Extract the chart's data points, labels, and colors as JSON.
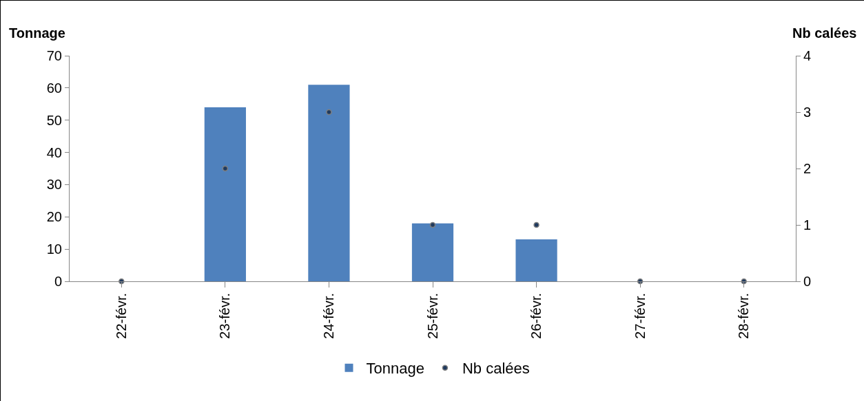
{
  "chart_data": {
    "type": "bar",
    "ylabel": "Tonnage",
    "y2label": "Nb calées",
    "categories": [
      "22-févr.",
      "23-févr.",
      "24-févr.",
      "25-févr.",
      "26-févr.",
      "27-févr.",
      "28-févr."
    ],
    "series": [
      {
        "name": "Tonnage",
        "color": "#4f81bd",
        "values": [
          0,
          54,
          61,
          18,
          13,
          0,
          0
        ]
      },
      {
        "name": "Nb calées",
        "type": "scatter",
        "axis": "y2",
        "color": "#1f3a5f",
        "marker": "circle",
        "values": [
          0,
          2,
          3,
          1,
          1,
          0,
          0
        ]
      }
    ],
    "ylim": [
      0,
      70
    ],
    "yticks": [
      0,
      10,
      20,
      30,
      40,
      50,
      60,
      70
    ],
    "y2lim": [
      0,
      4
    ],
    "y2ticks": [
      0,
      1,
      2,
      3,
      4
    ],
    "grid": false,
    "legend": "bottom"
  }
}
